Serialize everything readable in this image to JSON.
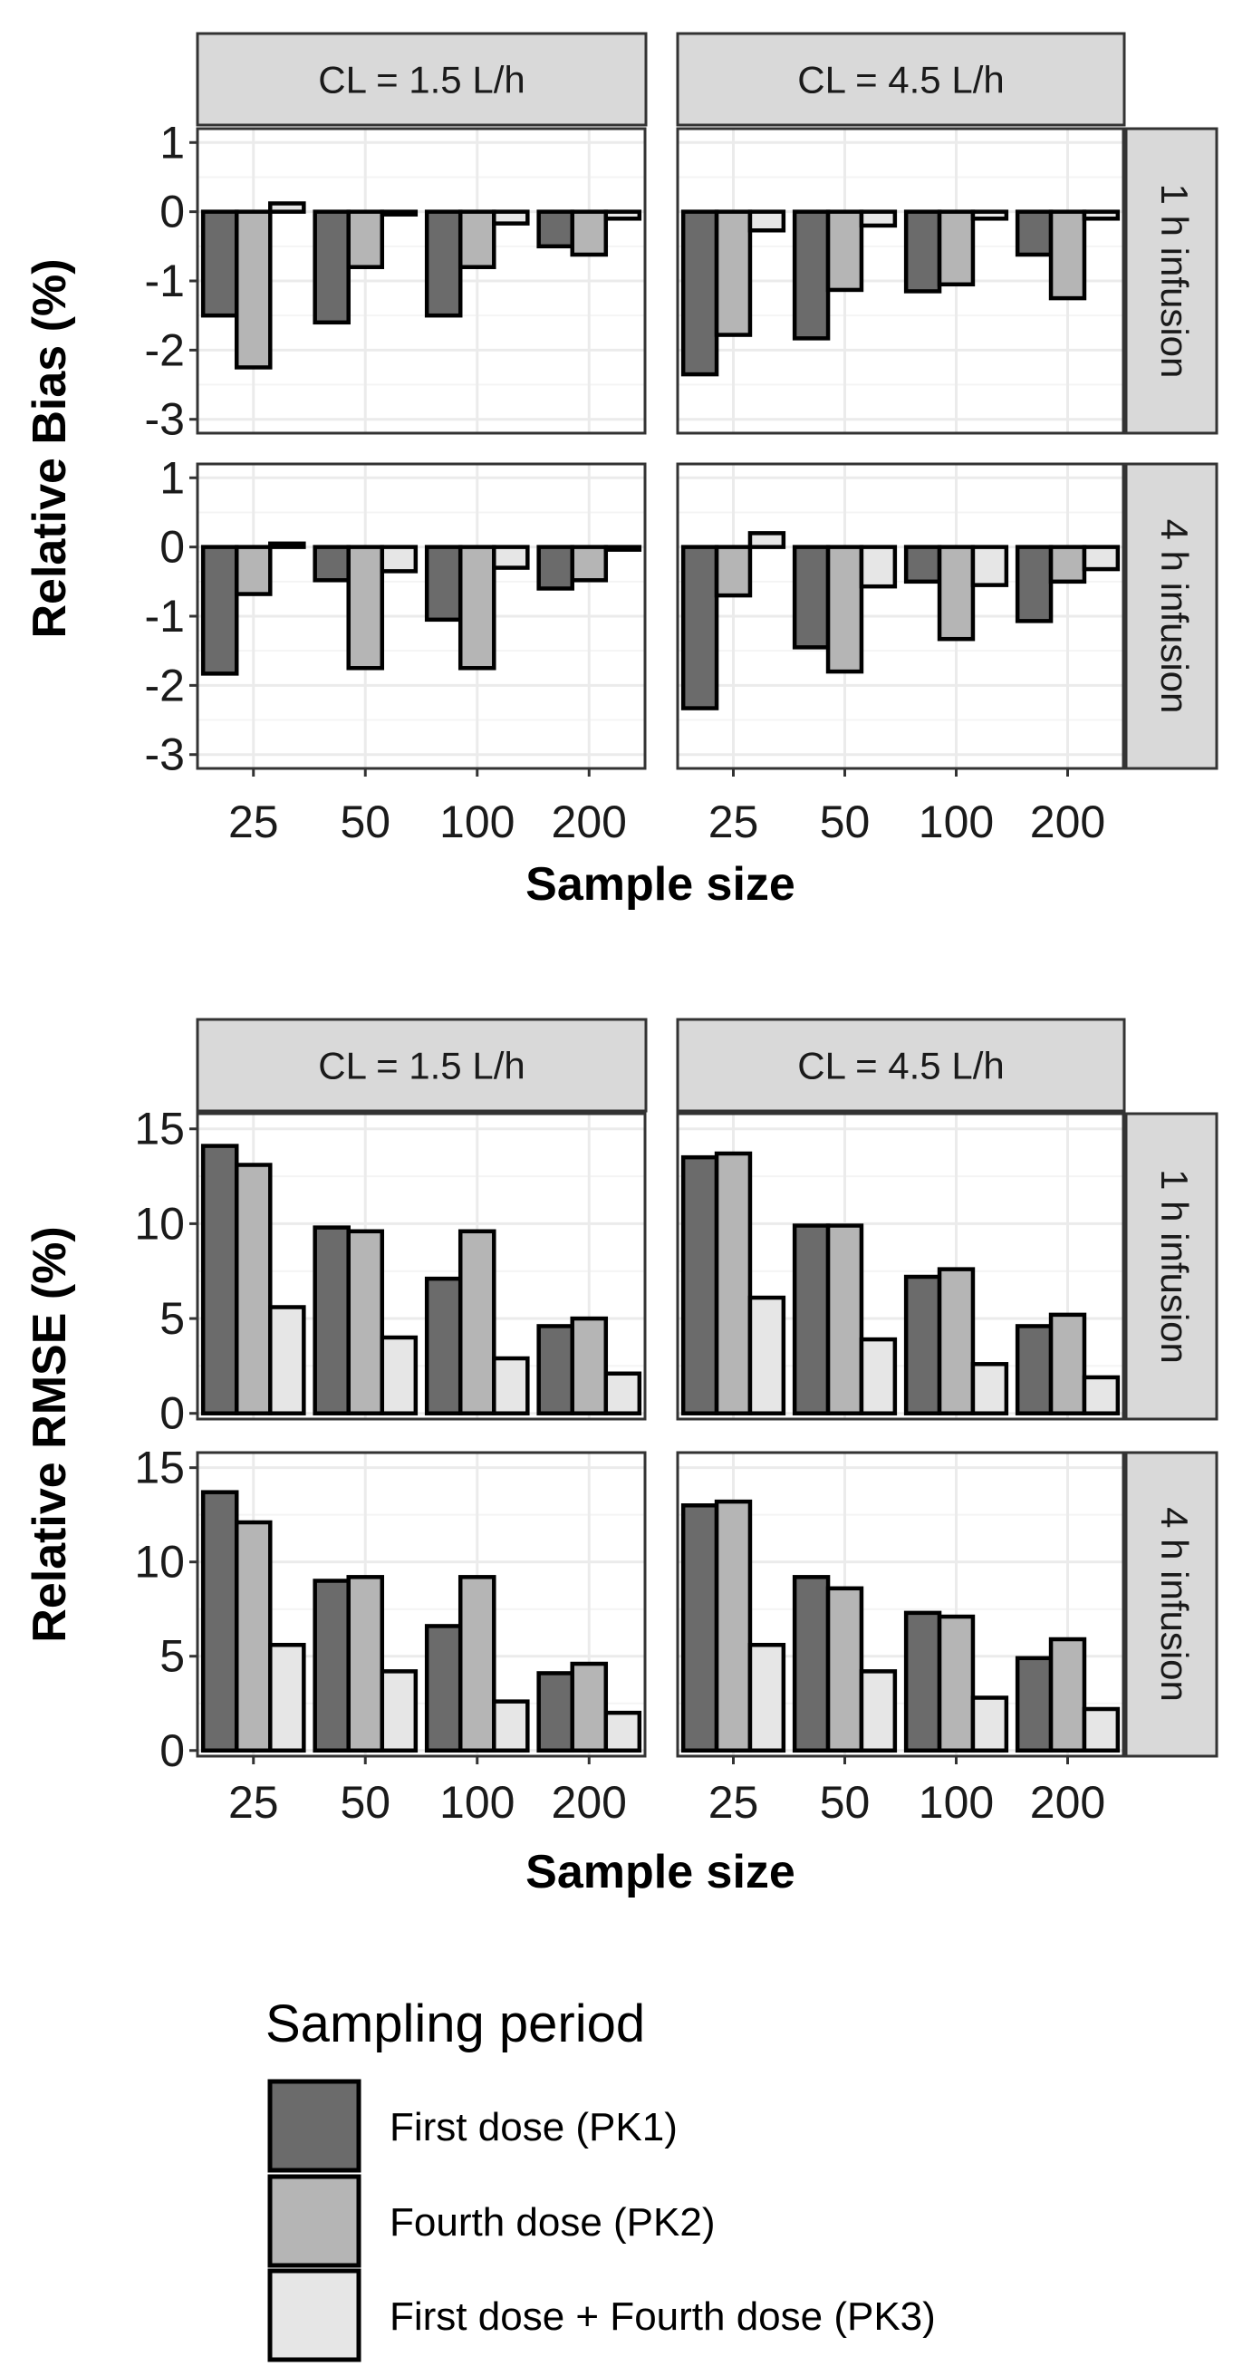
{
  "chart_data": [
    {
      "type": "bar",
      "ylabel": "Relative Bias (%)",
      "xlabel": "Sample size",
      "categories": [
        "25",
        "50",
        "100",
        "200"
      ],
      "ylim": [
        -3.2,
        1.2
      ],
      "yticks": [
        1,
        0,
        -1,
        -2,
        -3
      ],
      "panel_columns": [
        "CL = 1.5 L/h",
        "CL = 4.5 L/h"
      ],
      "panel_rows": [
        "1 h infusion",
        "4 h infusion"
      ],
      "panels": [
        {
          "col": "CL = 1.5 L/h",
          "row": "1 h infusion",
          "series": [
            {
              "name": "First dose (PK1)",
              "values": [
                -1.5,
                -1.6,
                -1.5,
                -0.5
              ]
            },
            {
              "name": "Fourth dose (PK2)",
              "values": [
                -2.25,
                -0.8,
                -0.8,
                -0.62
              ]
            },
            {
              "name": "First dose + Fourth dose (PK3)",
              "values": [
                0.12,
                -0.04,
                -0.17,
                -0.1
              ]
            }
          ]
        },
        {
          "col": "CL = 4.5 L/h",
          "row": "1 h infusion",
          "series": [
            {
              "name": "First dose (PK1)",
              "values": [
                -2.35,
                -1.83,
                -1.15,
                -0.62
              ]
            },
            {
              "name": "Fourth dose (PK2)",
              "values": [
                -1.78,
                -1.13,
                -1.05,
                -1.25
              ]
            },
            {
              "name": "First dose + Fourth dose (PK3)",
              "values": [
                -0.27,
                -0.2,
                -0.1,
                -0.1
              ]
            }
          ]
        },
        {
          "col": "CL = 1.5 L/h",
          "row": "4 h infusion",
          "series": [
            {
              "name": "First dose (PK1)",
              "values": [
                -1.83,
                -0.48,
                -1.05,
                -0.6
              ]
            },
            {
              "name": "Fourth dose (PK2)",
              "values": [
                -0.68,
                -1.75,
                -1.75,
                -0.48
              ]
            },
            {
              "name": "First dose + Fourth dose (PK3)",
              "values": [
                0.05,
                -0.35,
                -0.3,
                -0.02
              ]
            }
          ]
        },
        {
          "col": "CL = 4.5 L/h",
          "row": "4 h infusion",
          "series": [
            {
              "name": "First dose (PK1)",
              "values": [
                -2.33,
                -1.45,
                -0.5,
                -1.07
              ]
            },
            {
              "name": "Fourth dose (PK2)",
              "values": [
                -0.7,
                -1.8,
                -1.33,
                -0.5
              ]
            },
            {
              "name": "First dose + Fourth dose (PK3)",
              "values": [
                0.2,
                -0.57,
                -0.55,
                -0.32
              ]
            }
          ]
        }
      ]
    },
    {
      "type": "bar",
      "ylabel": "Relative RMSE (%)",
      "xlabel": "Sample size",
      "categories": [
        "25",
        "50",
        "100",
        "200"
      ],
      "ylim": [
        -0.3,
        15.8
      ],
      "yticks": [
        15,
        10,
        5,
        0
      ],
      "panel_columns": [
        "CL = 1.5 L/h",
        "CL = 4.5 L/h"
      ],
      "panel_rows": [
        "1 h infusion",
        "4 h infusion"
      ],
      "panels": [
        {
          "col": "CL = 1.5 L/h",
          "row": "1 h infusion",
          "series": [
            {
              "name": "First dose (PK1)",
              "values": [
                14.1,
                9.8,
                7.1,
                4.6
              ]
            },
            {
              "name": "Fourth dose (PK2)",
              "values": [
                13.1,
                9.6,
                9.6,
                5.0
              ]
            },
            {
              "name": "First dose + Fourth dose (PK3)",
              "values": [
                5.6,
                4.0,
                2.9,
                2.1
              ]
            }
          ]
        },
        {
          "col": "CL = 4.5 L/h",
          "row": "1 h infusion",
          "series": [
            {
              "name": "First dose (PK1)",
              "values": [
                13.5,
                9.9,
                7.2,
                4.6
              ]
            },
            {
              "name": "Fourth dose (PK2)",
              "values": [
                13.7,
                9.9,
                7.6,
                5.2
              ]
            },
            {
              "name": "First dose + Fourth dose (PK3)",
              "values": [
                6.1,
                3.9,
                2.6,
                1.9
              ]
            }
          ]
        },
        {
          "col": "CL = 1.5 L/h",
          "row": "4 h infusion",
          "series": [
            {
              "name": "First dose (PK1)",
              "values": [
                13.7,
                9.0,
                6.6,
                4.1
              ]
            },
            {
              "name": "Fourth dose (PK2)",
              "values": [
                12.1,
                9.2,
                9.2,
                4.6
              ]
            },
            {
              "name": "First dose + Fourth dose (PK3)",
              "values": [
                5.6,
                4.2,
                2.6,
                2.0
              ]
            }
          ]
        },
        {
          "col": "CL = 4.5 L/h",
          "row": "4 h infusion",
          "series": [
            {
              "name": "First dose (PK1)",
              "values": [
                13.0,
                9.2,
                7.3,
                4.9
              ]
            },
            {
              "name": "Fourth dose (PK2)",
              "values": [
                13.2,
                8.6,
                7.1,
                5.9
              ]
            },
            {
              "name": "First dose + Fourth dose (PK3)",
              "values": [
                5.6,
                4.2,
                2.8,
                2.2
              ]
            }
          ]
        }
      ]
    }
  ],
  "legend": {
    "title": "Sampling period",
    "items": [
      {
        "label": "First dose (PK1)",
        "color": "#6b6b6b"
      },
      {
        "label": "Fourth dose (PK2)",
        "color": "#b5b5b5"
      },
      {
        "label": "First dose + Fourth dose (PK3)",
        "color": "#e6e6e6"
      }
    ]
  },
  "colors": {
    "strip_fill": "#d9d9d9",
    "strip_border": "#333333",
    "panel_border": "#333333",
    "grid_major": "#ebebeb",
    "grid_minor": "#f4f4f4",
    "bar_outline": "#000000",
    "series": [
      "#6b6b6b",
      "#b5b5b5",
      "#e6e6e6"
    ]
  }
}
